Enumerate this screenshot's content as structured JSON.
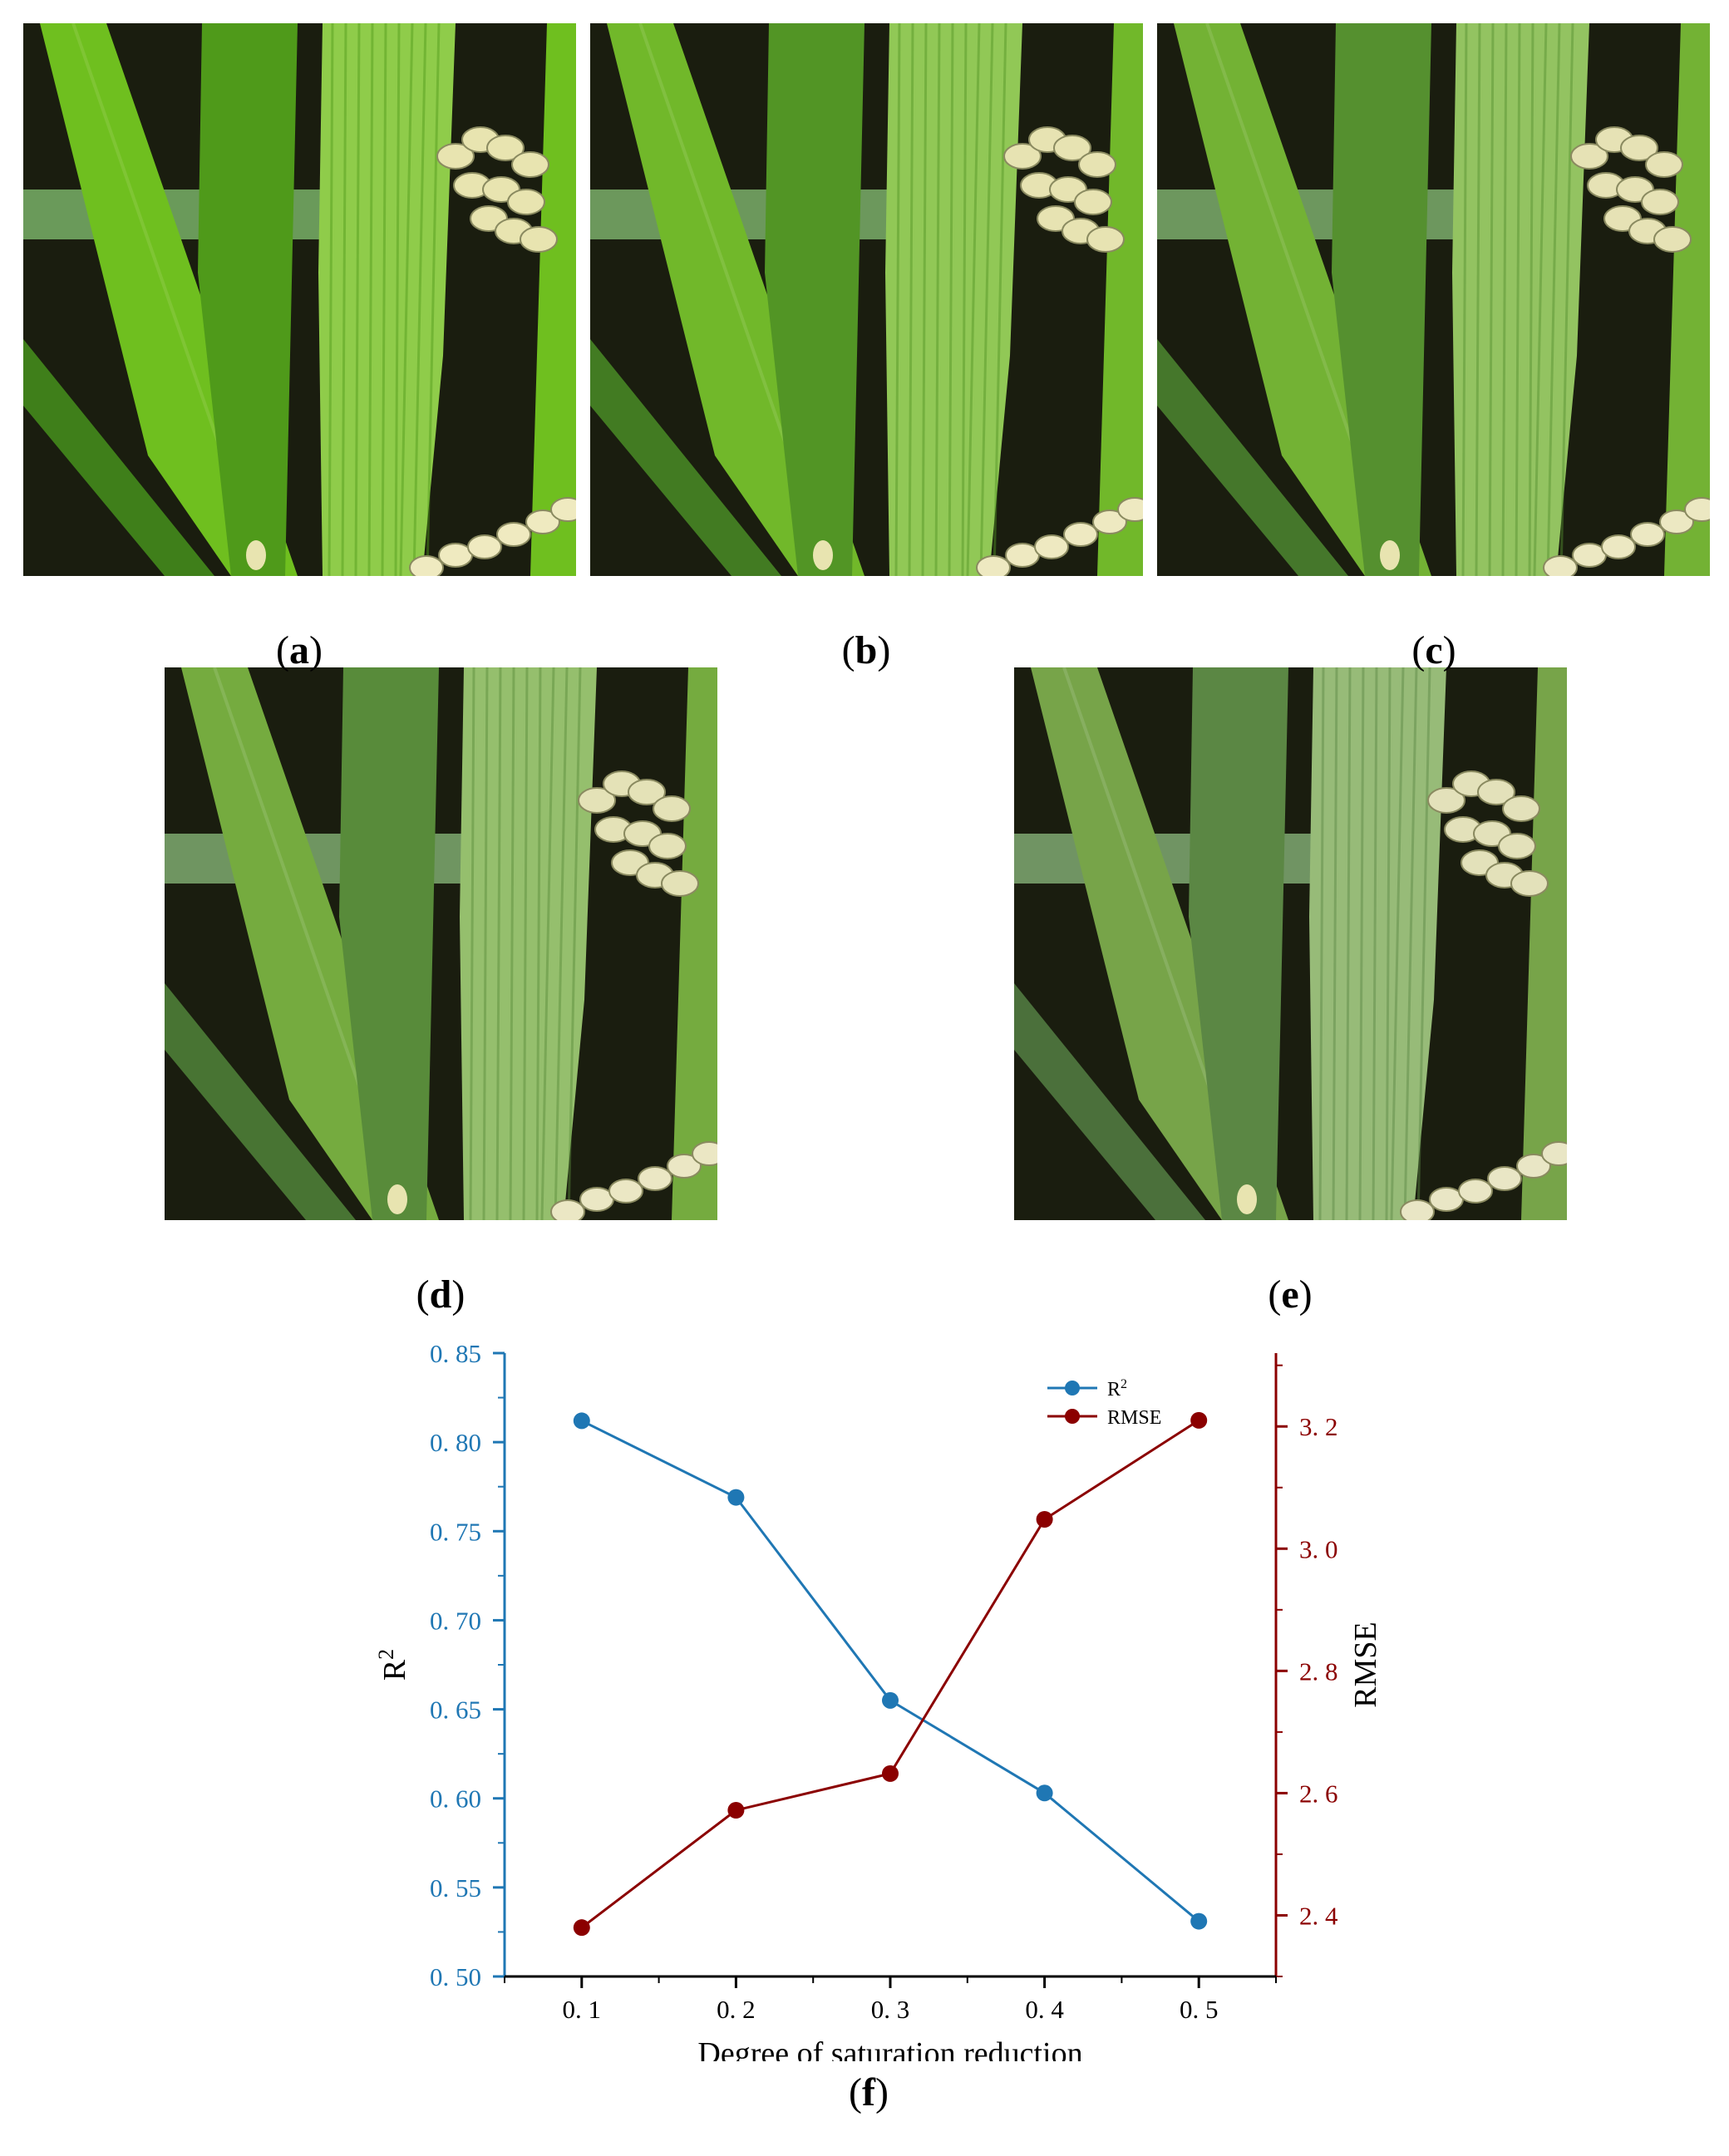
{
  "panels": [
    {
      "id": "a",
      "label": "a",
      "saturation": 1.0
    },
    {
      "id": "b",
      "label": "b",
      "saturation": 0.9
    },
    {
      "id": "c",
      "label": "c",
      "saturation": 0.8
    },
    {
      "id": "d",
      "label": "d",
      "saturation": 0.7
    },
    {
      "id": "e",
      "label": "e",
      "saturation": 0.6
    }
  ],
  "chart_label": "f",
  "colors": {
    "r2": "#1f77b4",
    "rmse": "#8b0000"
  },
  "chart_data": {
    "type": "line",
    "xlabel": "Degree of saturation reduction",
    "ylabel_left": "R2",
    "ylabel_right": "RMSE",
    "x": [
      0.1,
      0.2,
      0.3,
      0.4,
      0.5
    ],
    "x_ticks": [
      "0. 1",
      "0. 2",
      "0. 3",
      "0. 4",
      "0. 5"
    ],
    "xlim": [
      0.05,
      0.55
    ],
    "ylim_left": [
      0.5,
      0.85
    ],
    "ylim_right": [
      2.3,
      3.32
    ],
    "y_ticks_left": [
      "0. 50",
      "0. 55",
      "0. 60",
      "0. 65",
      "0. 70",
      "0. 75",
      "0. 80",
      "0. 85"
    ],
    "y_ticks_right": [
      "2. 4",
      "2. 6",
      "2. 8",
      "3. 0",
      "3. 2"
    ],
    "series": [
      {
        "name": "R2",
        "axis": "left",
        "values": [
          0.812,
          0.769,
          0.655,
          0.603,
          0.531
        ]
      },
      {
        "name": "RMSE",
        "axis": "right",
        "values": [
          2.38,
          2.572,
          2.632,
          3.048,
          3.21
        ]
      }
    ],
    "legend": "top-right",
    "grid": false
  }
}
